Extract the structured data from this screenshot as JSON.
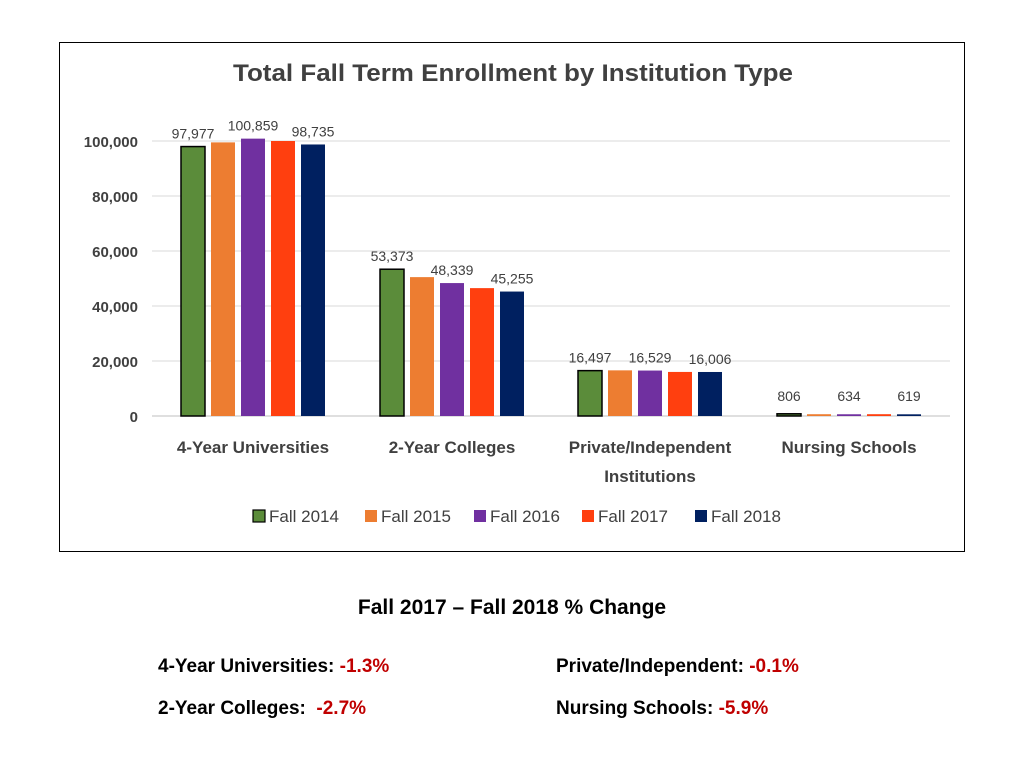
{
  "chart_data": {
    "type": "bar",
    "title": "Total Fall Term Enrollment by Institution Type",
    "xlabel": "",
    "ylabel": "",
    "ylim": [
      0,
      110000
    ],
    "yticks": [
      0,
      20000,
      40000,
      60000,
      80000,
      100000
    ],
    "ytick_labels": [
      "0",
      "20,000",
      "40,000",
      "60,000",
      "80,000",
      "100,000"
    ],
    "grid": true,
    "legend_position": "bottom",
    "categories": [
      "4-Year Universities",
      "2-Year Colleges",
      "Private/Independent Institutions",
      "Nursing Schools"
    ],
    "category_label_lines": [
      [
        "4-Year Universities"
      ],
      [
        "2-Year Colleges"
      ],
      [
        "Private/Independent",
        "Institutions"
      ],
      [
        "Nursing Schools"
      ]
    ],
    "series": [
      {
        "name": "Fall 2014",
        "color": "#5b8c3a",
        "values": [
          97977,
          53373,
          16497,
          806
        ],
        "outlined": true
      },
      {
        "name": "Fall 2015",
        "color": "#ed7d31",
        "values": [
          99500,
          50500,
          16600,
          650
        ],
        "outlined": false
      },
      {
        "name": "Fall 2016",
        "color": "#7030a0",
        "values": [
          100859,
          48339,
          16529,
          634
        ],
        "outlined": false
      },
      {
        "name": "Fall 2017",
        "color": "#ff3f0f",
        "values": [
          100000,
          46500,
          16022,
          658
        ],
        "outlined": false
      },
      {
        "name": "Fall 2018",
        "color": "#002060",
        "values": [
          98735,
          45255,
          16006,
          619
        ],
        "outlined": false
      }
    ],
    "data_labels": [
      {
        "category": 0,
        "series": 0,
        "text": "97,977"
      },
      {
        "category": 0,
        "series": 2,
        "text": "100,859"
      },
      {
        "category": 0,
        "series": 4,
        "text": "98,735"
      },
      {
        "category": 1,
        "series": 0,
        "text": "53,373"
      },
      {
        "category": 1,
        "series": 2,
        "text": "48,339"
      },
      {
        "category": 1,
        "series": 4,
        "text": "45,255"
      },
      {
        "category": 2,
        "series": 0,
        "text": "16,497"
      },
      {
        "category": 2,
        "series": 2,
        "text": "16,529"
      },
      {
        "category": 2,
        "series": 4,
        "text": "16,006"
      },
      {
        "category": 3,
        "series": 0,
        "text": "806"
      },
      {
        "category": 3,
        "series": 2,
        "text": "634"
      },
      {
        "category": 3,
        "series": 4,
        "text": "619"
      }
    ]
  },
  "change_section": {
    "title": "Fall 2017 – Fall 2018 % Change",
    "four_year": {
      "label": "4-Year Universities:",
      "value": "-1.3%"
    },
    "two_year": {
      "label": "2-Year Colleges:",
      "value": "-2.7%"
    },
    "private": {
      "label": "Private/Independent:",
      "value": "-0.1%"
    },
    "nursing": {
      "label": "Nursing Schools:",
      "value": "-5.9%"
    }
  }
}
